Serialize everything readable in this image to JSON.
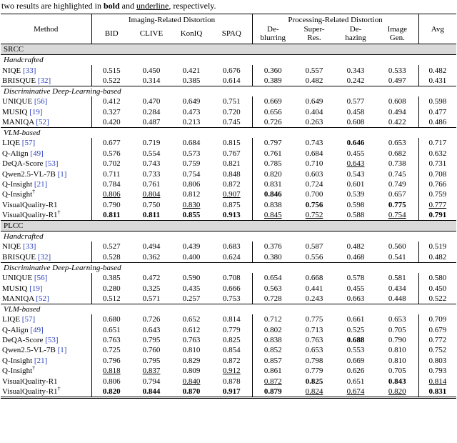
{
  "caption": {
    "part1": "two results are highlighted in ",
    "bold_word": "bold",
    "part2": " and ",
    "underline_word": "underline",
    "part3": ", respectively."
  },
  "colors": {
    "cite": "#2c3fbe",
    "band_bg": "#d9d9d9"
  },
  "header": {
    "method": "Method",
    "imaging_group": "Imaging-Related Distortion",
    "processing_group": "Processing-Related Distortion",
    "avg": "Avg",
    "columns": [
      "BID",
      "CLIVE",
      "KonIQ",
      "SPAQ",
      "De-\nblurring",
      "Super-\nRes.",
      "De-\nhazing",
      "Image\nGen."
    ]
  },
  "sections": [
    {
      "label": "SRCC",
      "groups": [
        {
          "label": "Handcrafted",
          "rows": [
            {
              "method": "NIQE",
              "cite": "[33]",
              "values": [
                "0.515",
                "0.450",
                "0.421",
                "0.676",
                "0.360",
                "0.557",
                "0.343",
                "0.533",
                "0.482"
              ]
            },
            {
              "method": "BRISQUE",
              "cite": "[32]",
              "values": [
                "0.522",
                "0.314",
                "0.385",
                "0.614",
                "0.389",
                "0.482",
                "0.242",
                "0.497",
                "0.431"
              ]
            }
          ]
        },
        {
          "label": "Discriminative Deep-Learning-based",
          "rows": [
            {
              "method": "UNIQUE",
              "cite": "[56]",
              "values": [
                "0.412",
                "0.470",
                "0.649",
                "0.751",
                "0.669",
                "0.649",
                "0.577",
                "0.608",
                "0.598"
              ]
            },
            {
              "method": "MUSIQ",
              "cite": "[19]",
              "values": [
                "0.327",
                "0.284",
                "0.473",
                "0.720",
                "0.656",
                "0.404",
                "0.458",
                "0.494",
                "0.477"
              ]
            },
            {
              "method": "MANIQA",
              "cite": "[52]",
              "values": [
                "0.420",
                "0.487",
                "0.213",
                "0.745",
                "0.726",
                "0.263",
                "0.608",
                "0.422",
                "0.486"
              ]
            }
          ]
        },
        {
          "label": "VLM-based",
          "rows": [
            {
              "method": "LIQE",
              "cite": "[57]",
              "values": [
                "0.677",
                "0.719",
                "0.684",
                "0.815",
                "0.797",
                "0.743",
                "b:0.646",
                "0.653",
                "0.717"
              ]
            },
            {
              "method": "Q-Align",
              "cite": "[49]",
              "values": [
                "0.576",
                "0.554",
                "0.573",
                "0.767",
                "0.761",
                "0.684",
                "0.455",
                "0.682",
                "0.632"
              ]
            },
            {
              "method": "DeQA-Score",
              "cite": "[53]",
              "values": [
                "0.702",
                "0.743",
                "0.759",
                "0.821",
                "0.785",
                "0.710",
                "u:0.643",
                "0.738",
                "0.731"
              ]
            },
            {
              "method": "Qwen2.5-VL-7B",
              "cite": "[1]",
              "values": [
                "0.711",
                "0.733",
                "0.754",
                "0.848",
                "0.820",
                "0.603",
                "0.543",
                "0.745",
                "0.708"
              ]
            },
            {
              "method": "Q-Insight",
              "cite": "[21]",
              "values": [
                "0.784",
                "0.761",
                "0.806",
                "0.872",
                "0.831",
                "0.724",
                "0.601",
                "0.749",
                "0.766"
              ]
            },
            {
              "method": "Q-Insight",
              "dagger": "†",
              "values": [
                "u:0.806",
                "u:0.804",
                "0.812",
                "u:0.907",
                "b:0.846",
                "0.700",
                "0.539",
                "0.657",
                "0.759"
              ]
            },
            {
              "method": "VisualQuality-R1",
              "values": [
                "0.790",
                "0.750",
                "u:0.830",
                "0.875",
                "0.838",
                "b:0.756",
                "0.598",
                "b:0.775",
                "u:0.777"
              ]
            },
            {
              "method": "VisualQuality-R1",
              "dagger": "†",
              "values": [
                "b:0.811",
                "b:0.811",
                "b:0.855",
                "b:0.913",
                "u:0.845",
                "u:0.752",
                "0.588",
                "u:0.754",
                "b:0.791"
              ]
            }
          ]
        }
      ]
    },
    {
      "label": "PLCC",
      "groups": [
        {
          "label": "Handcrafted",
          "rows": [
            {
              "method": "NIQE",
              "cite": "[33]",
              "values": [
                "0.527",
                "0.494",
                "0.439",
                "0.683",
                "0.376",
                "0.587",
                "0.482",
                "0.560",
                "0.519"
              ]
            },
            {
              "method": "BRISQUE",
              "cite": "[32]",
              "values": [
                "0.528",
                "0.362",
                "0.400",
                "0.624",
                "0.380",
                "0.556",
                "0.468",
                "0.541",
                "0.482"
              ]
            }
          ]
        },
        {
          "label": "Discriminative Deep-Learning-based",
          "rows": [
            {
              "method": "UNIQUE",
              "cite": "[56]",
              "values": [
                "0.385",
                "0.472",
                "0.590",
                "0.708",
                "0.654",
                "0.668",
                "0.578",
                "0.581",
                "0.580"
              ]
            },
            {
              "method": "MUSIQ",
              "cite": "[19]",
              "values": [
                "0.280",
                "0.325",
                "0.435",
                "0.666",
                "0.563",
                "0.441",
                "0.455",
                "0.434",
                "0.450"
              ]
            },
            {
              "method": "MANIQA",
              "cite": "[52]",
              "values": [
                "0.512",
                "0.571",
                "0.257",
                "0.753",
                "0.728",
                "0.243",
                "0.663",
                "0.448",
                "0.522"
              ]
            }
          ]
        },
        {
          "label": "VLM-based",
          "rows": [
            {
              "method": "LIQE",
              "cite": "[57]",
              "values": [
                "0.680",
                "0.726",
                "0.652",
                "0.814",
                "0.712",
                "0.775",
                "0.661",
                "0.653",
                "0.709"
              ]
            },
            {
              "method": "Q-Align",
              "cite": "[49]",
              "values": [
                "0.651",
                "0.643",
                "0.612",
                "0.779",
                "0.802",
                "0.713",
                "0.525",
                "0.705",
                "0.679"
              ]
            },
            {
              "method": "DeQA-Score",
              "cite": "[53]",
              "values": [
                "0.763",
                "0.795",
                "0.763",
                "0.825",
                "0.838",
                "0.763",
                "b:0.688",
                "0.790",
                "0.772"
              ]
            },
            {
              "method": "Qwen2.5-VL-7B",
              "cite": "[1]",
              "values": [
                "0.725",
                "0.760",
                "0.810",
                "0.854",
                "0.852",
                "0.653",
                "0.553",
                "0.810",
                "0.752"
              ]
            },
            {
              "method": "Q-Insight",
              "cite": "[21]",
              "values": [
                "0.796",
                "0.795",
                "0.829",
                "0.872",
                "0.857",
                "0.798",
                "0.669",
                "0.810",
                "0.803"
              ]
            },
            {
              "method": "Q-Insight",
              "dagger": "†",
              "values": [
                "u:0.818",
                "u:0.837",
                "0.809",
                "u:0.912",
                "0.861",
                "0.779",
                "0.626",
                "0.705",
                "0.793"
              ]
            },
            {
              "method": "VisualQuality-R1",
              "values": [
                "0.806",
                "0.794",
                "u:0.840",
                "0.878",
                "u:0.872",
                "b:0.825",
                "0.651",
                "b:0.843",
                "u:0.814"
              ]
            },
            {
              "method": "VisualQuality-R1",
              "dagger": "†",
              "values": [
                "b:0.820",
                "b:0.844",
                "b:0.870",
                "b:0.917",
                "b:0.879",
                "u:0.824",
                "u:0.674",
                "u:0.820",
                "b:0.831"
              ]
            }
          ]
        }
      ]
    }
  ]
}
